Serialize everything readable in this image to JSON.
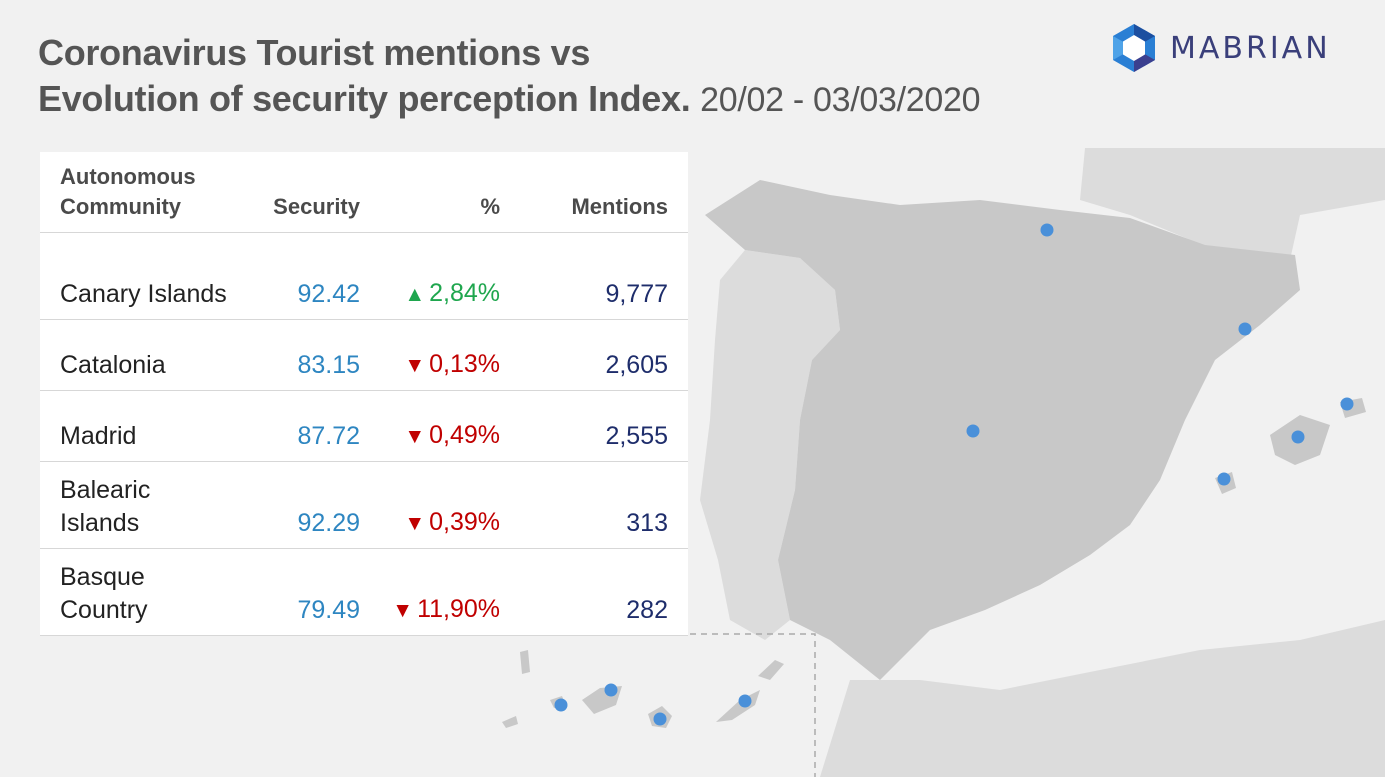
{
  "header": {
    "title_line1": "Coronavirus Tourist mentions vs",
    "title_line2": "Evolution of security perception Index.",
    "date_range": "20/02 - 03/03/2020"
  },
  "logo": {
    "text": "MABRIAN",
    "icon": "hexagon-logo-icon"
  },
  "table": {
    "headers": {
      "community": "Autonomous Community",
      "security": "Security",
      "pct": "%",
      "mentions": "Mentions"
    },
    "rows": [
      {
        "community": "Canary Islands",
        "security": "92.42",
        "pct": "2,84%",
        "direction": "up",
        "mentions": "9,777"
      },
      {
        "community": "Catalonia",
        "security": "83.15",
        "pct": "0,13%",
        "direction": "down",
        "mentions": "2,605"
      },
      {
        "community": "Madrid",
        "security": "87.72",
        "pct": "0,49%",
        "direction": "down",
        "mentions": "2,555"
      },
      {
        "community": "Balearic Islands",
        "security": "92.29",
        "pct": "0,39%",
        "direction": "down",
        "mentions": "313"
      },
      {
        "community": "Basque Country",
        "security": "79.49",
        "pct": "11,90%",
        "direction": "down",
        "mentions": "282"
      }
    ]
  },
  "colors": {
    "security_value": "#2e86c1",
    "pct_up": "#1fa64e",
    "pct_down": "#c00000",
    "mentions_value": "#1e2d6b",
    "map_marker": "#4a90d9",
    "spain_land": "#c8c8c8",
    "other_land": "#dcdcdc"
  }
}
